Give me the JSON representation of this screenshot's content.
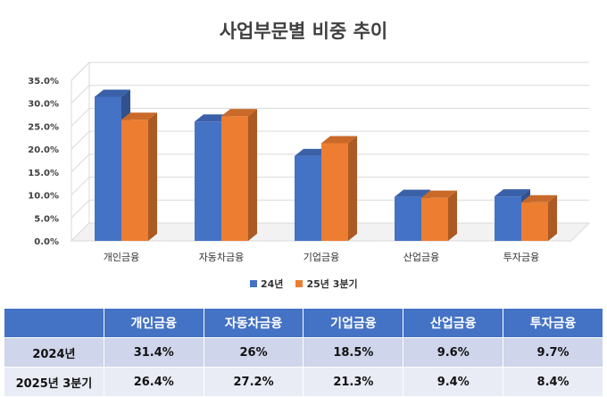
{
  "chart_data": {
    "type": "bar",
    "title": "사업부문별 비중 추이",
    "categories": [
      "개인금융",
      "자동차금융",
      "기업금융",
      "산업금융",
      "투자금융"
    ],
    "series": [
      {
        "name": "24년",
        "values": [
          31.4,
          26.0,
          18.5,
          9.6,
          9.7
        ],
        "color": "#4472c4"
      },
      {
        "name": "25년 3분기",
        "values": [
          26.4,
          27.2,
          21.3,
          9.4,
          8.4
        ],
        "color": "#ed7d31"
      }
    ],
    "y_ticks": [
      "0.0%",
      "5.0%",
      "10.0%",
      "15.0%",
      "20.0%",
      "25.0%",
      "30.0%",
      "35.0%"
    ],
    "ylim": [
      0,
      35
    ],
    "grid": true,
    "legend_position": "bottom",
    "style": "3d-clustered-column"
  },
  "table": {
    "headers": [
      "",
      "개인금융",
      "자동차금융",
      "기업금융",
      "산업금융",
      "투자금융"
    ],
    "rows": [
      {
        "label": "2024년",
        "cells": [
          "31.4%",
          "26%",
          "18.5%",
          "9.6%",
          "9.7%"
        ]
      },
      {
        "label": "2025년 3분기",
        "cells": [
          "26.4%",
          "27.2%",
          "21.3%",
          "9.4%",
          "8.4%"
        ]
      }
    ]
  },
  "colors": {
    "header_bg": "#4472c4",
    "row_a_bg": "#cfd5ea",
    "row_b_bg": "#e9ebf5"
  }
}
